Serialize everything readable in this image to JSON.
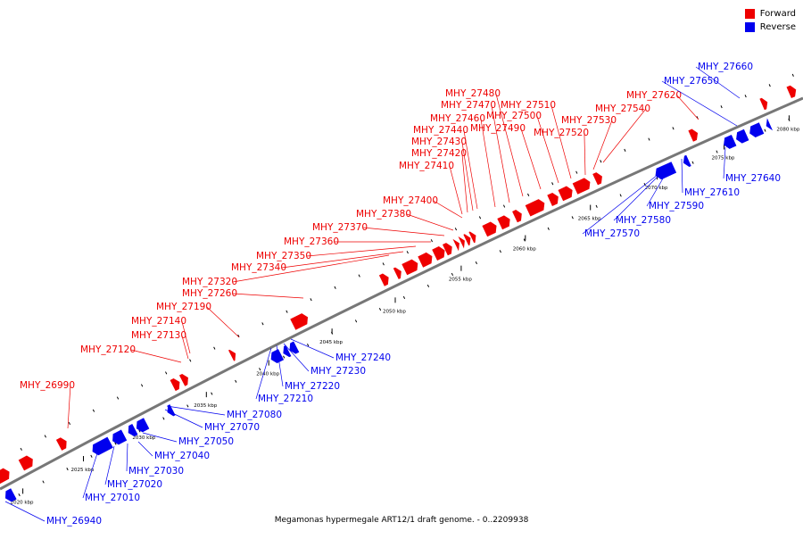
{
  "colors": {
    "forward": "#ee0000",
    "reverse": "#0000ee",
    "backbone": "#777777",
    "tick": "#000000"
  },
  "legend": {
    "forward_label": "Forward",
    "reverse_label": "Reverse"
  },
  "caption": "Megamonas hypermegale ART12/1 draft genome. - 0..2209938",
  "kbp_labels": [
    "2020 kbp",
    "2025 kbp",
    "2030 kbp",
    "2035 kbp",
    "2040 kbp",
    "2045 kbp",
    "2050 kbp",
    "2055 kbp",
    "2060 kbp",
    "2065 kbp",
    "2070 kbp",
    "2075 kbp",
    "2080 kbp"
  ],
  "forward_genes": [
    "MHY_26990",
    "MHY_27120",
    "MHY_27130",
    "MHY_27140",
    "MHY_27190",
    "MHY_27260",
    "MHY_27320",
    "MHY_27340",
    "MHY_27350",
    "MHY_27360",
    "MHY_27370",
    "MHY_27380",
    "MHY_27400",
    "MHY_27410",
    "MHY_27420",
    "MHY_27430",
    "MHY_27440",
    "MHY_27460",
    "MHY_27470",
    "MHY_27480",
    "MHY_27490",
    "MHY_27500",
    "MHY_27510",
    "MHY_27520",
    "MHY_27530",
    "MHY_27540",
    "MHY_27620"
  ],
  "reverse_genes": [
    "MHY_26940",
    "MHY_27010",
    "MHY_27020",
    "MHY_27030",
    "MHY_27040",
    "MHY_27050",
    "MHY_27070",
    "MHY_27080",
    "MHY_27210",
    "MHY_27220",
    "MHY_27230",
    "MHY_27240",
    "MHY_27570",
    "MHY_27580",
    "MHY_27590",
    "MHY_27610",
    "MHY_27640",
    "MHY_27650",
    "MHY_27660"
  ]
}
